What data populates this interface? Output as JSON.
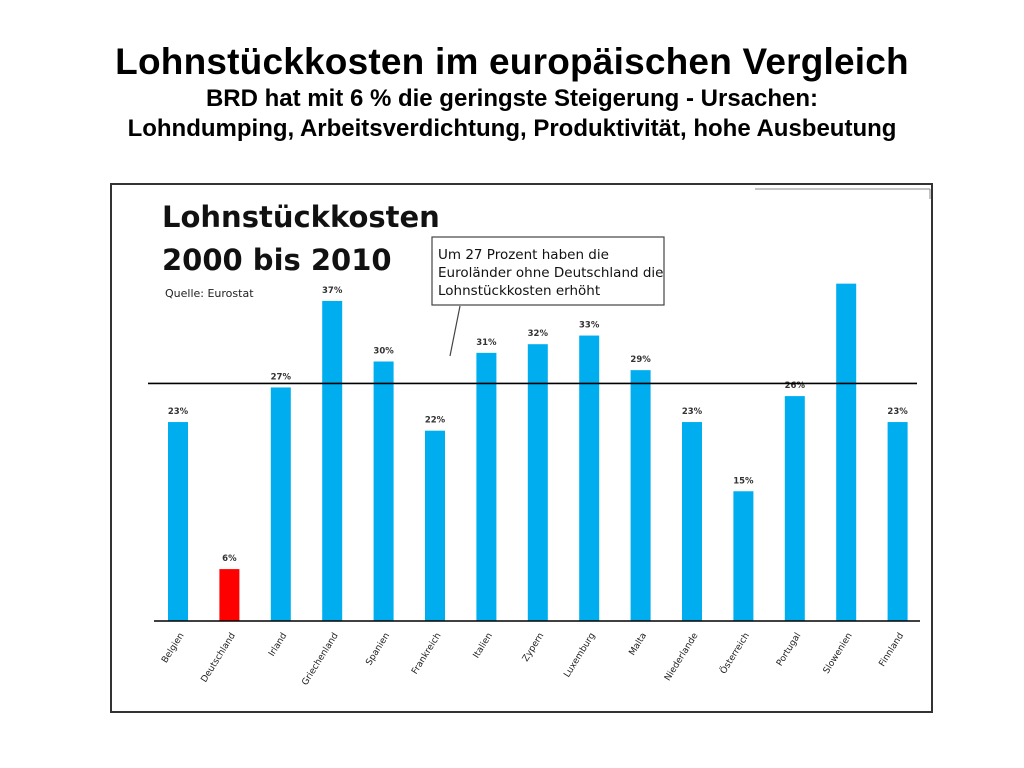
{
  "slide": {
    "title": "Lohnstückkosten im europäischen Vergleich",
    "subtitle_line1": "BRD hat mit 6 % die geringste Steigerung - Ursachen:",
    "subtitle_line2": "Lohndumping, Arbeitsverdichtung, Produktivität, hohe Ausbeutung"
  },
  "chart_data": {
    "type": "bar",
    "title_line1": "Lohnstückkosten",
    "title_line2": "2000 bis 2010",
    "source": "Quelle: Eurostat",
    "annotation": {
      "lines": [
        "Um 27 Prozent haben die",
        "Euroländer ohne Deutschland die",
        "Lohnstückkosten erhöht"
      ]
    },
    "reference_line_value": 27,
    "categories": [
      "Belgien",
      "Deutschland",
      "Irland",
      "Griechenland",
      "Spanien",
      "Frankreich",
      "Italien",
      "Zypern",
      "Luxemburg",
      "Malta",
      "Niederlande",
      "Österreich",
      "Portugal",
      "Slowenien",
      "Finnland"
    ],
    "values": [
      23,
      6,
      27,
      37,
      30,
      22,
      31,
      32,
      33,
      29,
      23,
      15,
      26,
      39,
      23
    ],
    "data_labels": [
      "23%",
      "6%",
      "27%",
      "37%",
      "30%",
      "22%",
      "31%",
      "32%",
      "33%",
      "29%",
      "23%",
      "15%",
      "26%",
      "",
      "23%"
    ],
    "highlight_category": "Deutschland",
    "colors": {
      "bar": "#00aeef",
      "highlight": "#ff0000",
      "line": "#000000"
    },
    "ylim": [
      0,
      40
    ],
    "grid": false,
    "legend": "none"
  }
}
